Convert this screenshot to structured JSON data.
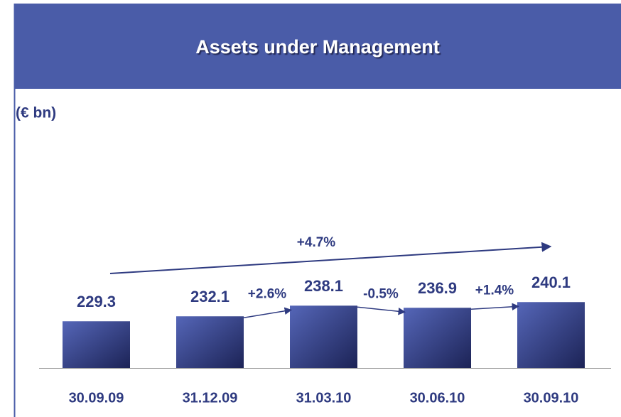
{
  "chart_data": {
    "type": "bar",
    "title": "Assets under Management",
    "subtitle": "(€ bn)",
    "categories": [
      "30.09.09",
      "31.12.09",
      "31.03.10",
      "30.06.10",
      "30.09.10"
    ],
    "values": [
      229.3,
      232.1,
      238.1,
      236.9,
      240.1
    ],
    "color": "#3d4c9a",
    "ylim": [
      203,
      250
    ],
    "annotations": [
      "+4.7%",
      "+2.6%",
      "-0.5%",
      "+1.4%"
    ]
  }
}
